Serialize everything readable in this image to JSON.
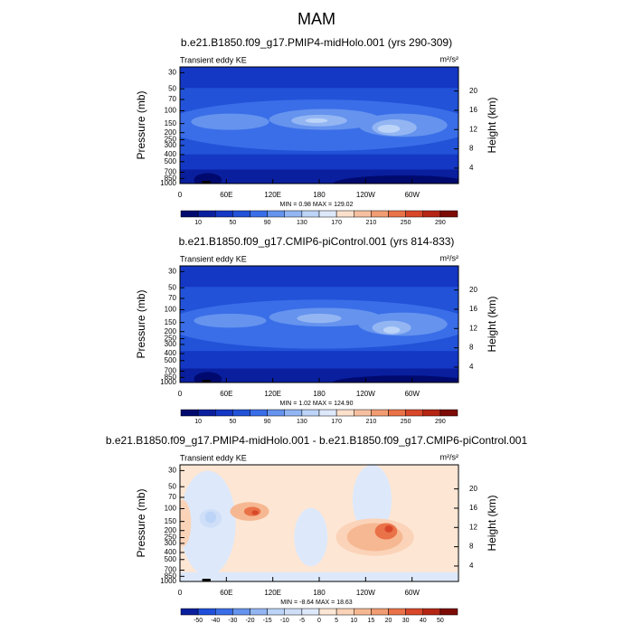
{
  "title": "MAM",
  "chart_data": [
    {
      "type": "contour",
      "title": "b.e21.B1850.f09_g17.PMIP4-midHolo.001 (yrs 290-309)",
      "subtitle": "Transient eddy KE",
      "units": "m²/s²",
      "ylabel": "Pressure (mb)",
      "y2label": "Height (km)",
      "xlim": [
        0,
        360
      ],
      "xticks": [
        0,
        {
          "value": 60,
          "label": "60E"
        },
        {
          "value": 120,
          "label": "120E"
        },
        180,
        {
          "value": 240,
          "label": "120W"
        },
        {
          "value": 300,
          "label": "60W"
        }
      ],
      "ylog": true,
      "ylim": [
        1000,
        25
      ],
      "yticks": [
        30,
        50,
        70,
        100,
        150,
        200,
        250,
        300,
        400,
        500,
        700,
        850,
        1000
      ],
      "y2lim": [
        0.8,
        25
      ],
      "y2ticks": [
        4,
        8,
        12,
        16,
        20
      ],
      "stats": [
        {
          "name": "MIN =",
          "value": 0.98
        },
        {
          "name": "MAX =",
          "value": 129.02
        }
      ],
      "levels": [
        10,
        30,
        50,
        70,
        90,
        110,
        130,
        150,
        170,
        190,
        210,
        230,
        250,
        270,
        290
      ],
      "colorbar_ticks": [
        10,
        50,
        90,
        130,
        170,
        210,
        250,
        290
      ],
      "colors": [
        "#000a6e",
        "#0a1f9e",
        "#1437c4",
        "#2152d8",
        "#3a6ee8",
        "#6593ee",
        "#93b6f3",
        "#bcd4f8",
        "#dde9fb",
        "#fbe0cc",
        "#f6c0a0",
        "#f19c72",
        "#ea7248",
        "#d8472a",
        "#b52514",
        "#7d0b05"
      ]
    },
    {
      "type": "contour",
      "title": "b.e21.B1850.f09_g17.CMIP6-piControl.001 (yrs 814-833)",
      "subtitle": "Transient eddy KE",
      "units": "m²/s²",
      "ylabel": "Pressure (mb)",
      "y2label": "Height (km)",
      "xlim": [
        0,
        360
      ],
      "xticks": [
        0,
        {
          "value": 60,
          "label": "60E"
        },
        {
          "value": 120,
          "label": "120E"
        },
        180,
        {
          "value": 240,
          "label": "120W"
        },
        {
          "value": 300,
          "label": "60W"
        }
      ],
      "ylog": true,
      "ylim": [
        1000,
        25
      ],
      "yticks": [
        30,
        50,
        70,
        100,
        150,
        200,
        250,
        300,
        400,
        500,
        700,
        850,
        1000
      ],
      "y2lim": [
        0.8,
        25
      ],
      "y2ticks": [
        4,
        8,
        12,
        16,
        20
      ],
      "stats": [
        {
          "name": "MIN =",
          "value": 1.02
        },
        {
          "name": "MAX =",
          "value": {
            "value": 124.9,
            "label": "124.90"
          }
        }
      ],
      "levels": [
        10,
        30,
        50,
        70,
        90,
        110,
        130,
        150,
        170,
        190,
        210,
        230,
        250,
        270,
        290
      ],
      "colorbar_ticks": [
        10,
        50,
        90,
        130,
        170,
        210,
        250,
        290
      ],
      "colors": [
        "#000a6e",
        "#0a1f9e",
        "#1437c4",
        "#2152d8",
        "#3a6ee8",
        "#6593ee",
        "#93b6f3",
        "#bcd4f8",
        "#dde9fb",
        "#fbe0cc",
        "#f6c0a0",
        "#f19c72",
        "#ea7248",
        "#d8472a",
        "#b52514",
        "#7d0b05"
      ]
    },
    {
      "type": "contour",
      "title": "b.e21.B1850.f09_g17.PMIP4-midHolo.001 - b.e21.B1850.f09_g17.CMIP6-piControl.001",
      "subtitle": "Transient eddy KE",
      "units": "m²/s²",
      "ylabel": "Pressure (mb)",
      "y2label": "Height (km)",
      "xlim": [
        0,
        360
      ],
      "xticks": [
        0,
        {
          "value": 60,
          "label": "60E"
        },
        {
          "value": 120,
          "label": "120E"
        },
        180,
        {
          "value": 240,
          "label": "120W"
        },
        {
          "value": 300,
          "label": "60W"
        }
      ],
      "ylog": true,
      "ylim": [
        1000,
        25
      ],
      "yticks": [
        30,
        50,
        70,
        100,
        150,
        200,
        250,
        300,
        400,
        500,
        700,
        850,
        1000
      ],
      "y2lim": [
        0.8,
        25
      ],
      "y2ticks": [
        4,
        8,
        12,
        16,
        20
      ],
      "stats": [
        {
          "name": "MIN =",
          "value": -8.64
        },
        {
          "name": "MAX =",
          "value": 18.63
        }
      ],
      "levels": [
        -50,
        -40,
        -30,
        -20,
        -15,
        -10,
        -5,
        0,
        5,
        10,
        15,
        20,
        30,
        40,
        50
      ],
      "colorbar_ticks": [
        -50,
        -40,
        -30,
        -20,
        -15,
        -10,
        -5,
        0,
        5,
        10,
        15,
        20,
        30,
        40,
        50
      ],
      "colors": [
        "#0a1f9e",
        "#1f4fdb",
        "#3a6ee8",
        "#6593ee",
        "#93b6f3",
        "#bcd4f8",
        "#cfdff8",
        "#dde9fb",
        "#fde6d4",
        "#fbd3b8",
        "#f6b892",
        "#f19c72",
        "#ea7248",
        "#d8472a",
        "#b52514",
        "#7d0b05"
      ]
    }
  ]
}
